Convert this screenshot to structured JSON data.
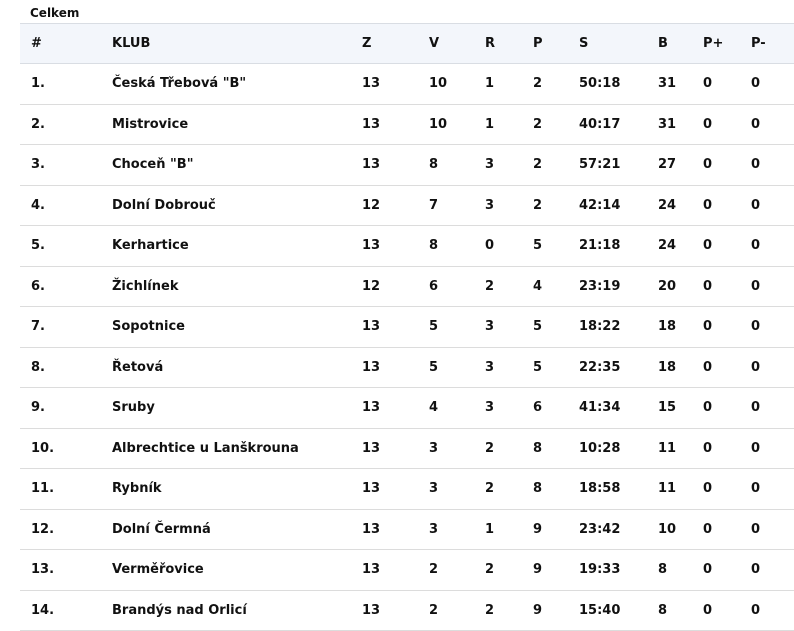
{
  "caption": "Celkem",
  "columns": {
    "pos": "#",
    "club": "KLUB",
    "z": "Z",
    "v": "V",
    "r": "R",
    "p": "P",
    "s": "S",
    "b": "B",
    "pp": "P+",
    "pm": "P-"
  },
  "rows": [
    {
      "pos": "1.",
      "club": "Česká Třebová \"B\"",
      "z": "13",
      "v": "10",
      "r": "1",
      "p": "2",
      "s": "50:18",
      "b": "31",
      "pp": "0",
      "pm": "0"
    },
    {
      "pos": "2.",
      "club": "Mistrovice",
      "z": "13",
      "v": "10",
      "r": "1",
      "p": "2",
      "s": "40:17",
      "b": "31",
      "pp": "0",
      "pm": "0"
    },
    {
      "pos": "3.",
      "club": "Choceň \"B\"",
      "z": "13",
      "v": "8",
      "r": "3",
      "p": "2",
      "s": "57:21",
      "b": "27",
      "pp": "0",
      "pm": "0"
    },
    {
      "pos": "4.",
      "club": "Dolní Dobrouč",
      "z": "12",
      "v": "7",
      "r": "3",
      "p": "2",
      "s": "42:14",
      "b": "24",
      "pp": "0",
      "pm": "0"
    },
    {
      "pos": "5.",
      "club": "Kerhartice",
      "z": "13",
      "v": "8",
      "r": "0",
      "p": "5",
      "s": "21:18",
      "b": "24",
      "pp": "0",
      "pm": "0"
    },
    {
      "pos": "6.",
      "club": "Žichlínek",
      "z": "12",
      "v": "6",
      "r": "2",
      "p": "4",
      "s": "23:19",
      "b": "20",
      "pp": "0",
      "pm": "0"
    },
    {
      "pos": "7.",
      "club": "Sopotnice",
      "z": "13",
      "v": "5",
      "r": "3",
      "p": "5",
      "s": "18:22",
      "b": "18",
      "pp": "0",
      "pm": "0"
    },
    {
      "pos": "8.",
      "club": "Řetová",
      "z": "13",
      "v": "5",
      "r": "3",
      "p": "5",
      "s": "22:35",
      "b": "18",
      "pp": "0",
      "pm": "0"
    },
    {
      "pos": "9.",
      "club": "Sruby",
      "z": "13",
      "v": "4",
      "r": "3",
      "p": "6",
      "s": "41:34",
      "b": "15",
      "pp": "0",
      "pm": "0"
    },
    {
      "pos": "10.",
      "club": "Albrechtice u Lanškrouna",
      "z": "13",
      "v": "3",
      "r": "2",
      "p": "8",
      "s": "10:28",
      "b": "11",
      "pp": "0",
      "pm": "0"
    },
    {
      "pos": "11.",
      "club": "Rybník",
      "z": "13",
      "v": "3",
      "r": "2",
      "p": "8",
      "s": "18:58",
      "b": "11",
      "pp": "0",
      "pm": "0"
    },
    {
      "pos": "12.",
      "club": "Dolní Čermná",
      "z": "13",
      "v": "3",
      "r": "1",
      "p": "9",
      "s": "23:42",
      "b": "10",
      "pp": "0",
      "pm": "0"
    },
    {
      "pos": "13.",
      "club": "Verměřovice",
      "z": "13",
      "v": "2",
      "r": "2",
      "p": "9",
      "s": "19:33",
      "b": "8",
      "pp": "0",
      "pm": "0"
    },
    {
      "pos": "14.",
      "club": "Brandýs nad Orlicí",
      "z": "13",
      "v": "2",
      "r": "2",
      "p": "9",
      "s": "15:40",
      "b": "8",
      "pp": "0",
      "pm": "0"
    }
  ]
}
